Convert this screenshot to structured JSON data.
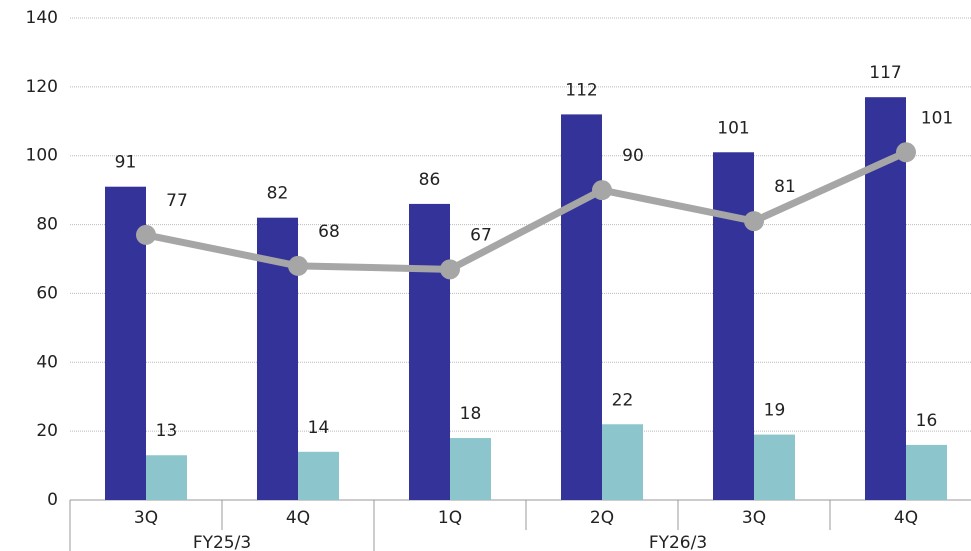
{
  "chart_data": {
    "type": "bar",
    "categories": [
      "3Q",
      "4Q",
      "1Q",
      "2Q",
      "3Q",
      "4Q"
    ],
    "groups": [
      {
        "label": "FY25/3",
        "size": 2
      },
      {
        "label": "FY26/3",
        "size": 4
      }
    ],
    "series": [
      {
        "type": "bar",
        "color": "#333399",
        "values": [
          91,
          82,
          86,
          112,
          101,
          117
        ]
      },
      {
        "type": "bar",
        "color": "#8cc6cc",
        "values": [
          13,
          14,
          18,
          22,
          19,
          16
        ]
      },
      {
        "type": "line",
        "color": "#a6a6a6",
        "values": [
          77,
          68,
          67,
          90,
          81,
          101
        ]
      }
    ],
    "ylim": [
      0,
      140
    ],
    "yticks": [
      0,
      20,
      40,
      60,
      80,
      100,
      120,
      140
    ],
    "grid": true
  }
}
